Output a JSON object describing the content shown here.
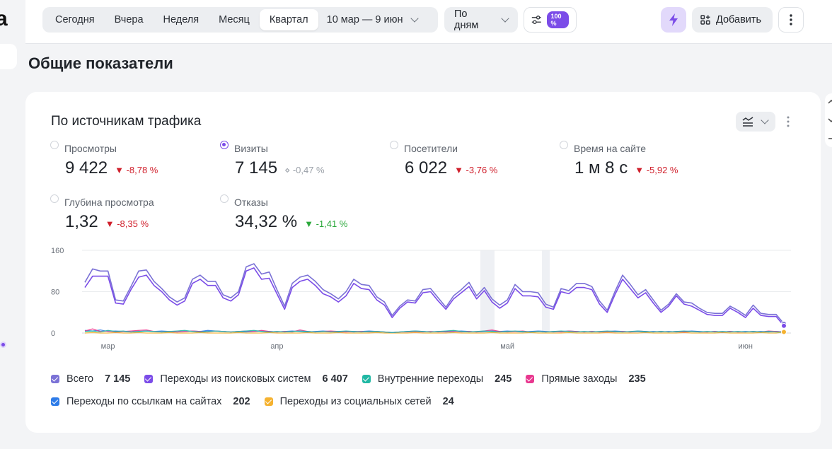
{
  "toolbar": {
    "periods": [
      "Сегодня",
      "Вчера",
      "Неделя",
      "Месяц",
      "Квартал"
    ],
    "active_period": "Квартал",
    "date_range": "10 мар — 9 июн",
    "grouping": "По дням",
    "sampling_badge": "100 %",
    "add_label": "Добавить"
  },
  "page": {
    "title": "Общие показатели"
  },
  "card": {
    "title": "По источникам трафика",
    "metrics": [
      {
        "label": "Просмотры",
        "value": "9 422",
        "delta": "-8,78 %",
        "trend": "neg",
        "selected": false
      },
      {
        "label": "Визиты",
        "value": "7 145",
        "delta": "-0,47 %",
        "trend": "neu",
        "selected": true
      },
      {
        "label": "Посетители",
        "value": "6 022",
        "delta": "-3,76 %",
        "trend": "neg",
        "selected": false
      },
      {
        "label": "Время на сайте",
        "value": "1 м 8 с",
        "delta": "-5,92 %",
        "trend": "neg",
        "selected": false
      },
      {
        "label": "Глубина просмотра",
        "value": "1,32",
        "delta": "-8,35 %",
        "trend": "neg",
        "selected": false
      },
      {
        "label": "Отказы",
        "value": "34,32 %",
        "delta": "-1,41 %",
        "trend": "pos",
        "selected": false
      }
    ],
    "legend": [
      {
        "label": "Всего",
        "value": "7 145",
        "color": "#7b72d6"
      },
      {
        "label": "Переходы из поисковых систем",
        "value": "6 407",
        "color": "#7b4ce8"
      },
      {
        "label": "Внутренние переходы",
        "value": "245",
        "color": "#21b8a4"
      },
      {
        "label": "Прямые заходы",
        "value": "235",
        "color": "#e8388f"
      },
      {
        "label": "Переходы по ссылкам на сайтах",
        "value": "202",
        "color": "#2d7be8"
      },
      {
        "label": "Переходы из социальных сетей",
        "value": "24",
        "color": "#f5b230"
      }
    ]
  },
  "chart_data": {
    "type": "line",
    "x_start": "10 мар",
    "x_ticks": [
      "мар",
      "апр",
      "май",
      "июн"
    ],
    "y_ticks": [
      "0",
      "80",
      "160"
    ],
    "ylim": [
      0,
      160
    ],
    "series": [
      {
        "name": "Всего",
        "color": "#7b72d6",
        "values": [
          98,
          124,
          120,
          120,
          64,
          62,
          90,
          120,
          122,
          100,
          86,
          70,
          60,
          68,
          104,
          112,
          100,
          100,
          74,
          68,
          80,
          128,
          134,
          114,
          118,
          84,
          52,
          96,
          108,
          112,
          100,
          84,
          76,
          66,
          80,
          104,
          94,
          92,
          70,
          60,
          34,
          52,
          64,
          62,
          84,
          86,
          68,
          50,
          72,
          84,
          98,
          72,
          88,
          66,
          54,
          64,
          94,
          80,
          80,
          78,
          56,
          50,
          86,
          82,
          96,
          96,
          90,
          62,
          44,
          80,
          112,
          94,
          74,
          84,
          64,
          44,
          56,
          76,
          60,
          58,
          48,
          40,
          38,
          38,
          52,
          44,
          34,
          54,
          38,
          36,
          36,
          18
        ]
      },
      {
        "name": "Переходы из поисковых систем",
        "color": "#7b4ce8",
        "values": [
          88,
          110,
          110,
          110,
          58,
          56,
          84,
          108,
          112,
          92,
          80,
          64,
          54,
          62,
          96,
          104,
          92,
          92,
          68,
          62,
          74,
          120,
          126,
          104,
          106,
          76,
          46,
          88,
          100,
          104,
          92,
          76,
          70,
          60,
          72,
          96,
          86,
          84,
          64,
          54,
          30,
          48,
          60,
          58,
          78,
          80,
          62,
          46,
          66,
          78,
          90,
          66,
          82,
          60,
          48,
          58,
          86,
          72,
          72,
          70,
          50,
          46,
          80,
          76,
          88,
          88,
          84,
          56,
          40,
          74,
          104,
          86,
          68,
          78,
          58,
          40,
          52,
          72,
          56,
          52,
          44,
          36,
          34,
          34,
          48,
          40,
          30,
          48,
          34,
          32,
          32,
          14
        ]
      },
      {
        "name": "Внутренние переходы",
        "color": "#21b8a4",
        "values": [
          3,
          4,
          2,
          5,
          3,
          4,
          2,
          3,
          4,
          3,
          2,
          3,
          4,
          5,
          3,
          2,
          3,
          4,
          3,
          2,
          3,
          4,
          5,
          3,
          2,
          3,
          2,
          3,
          4,
          3,
          2,
          3,
          2,
          3,
          4,
          3,
          2,
          3,
          3,
          2,
          1,
          2,
          3,
          4,
          3,
          2,
          3,
          4,
          5,
          3,
          2,
          3,
          4,
          3,
          2,
          3,
          4,
          3,
          2,
          3,
          2,
          3,
          4,
          3,
          2,
          3,
          2,
          3,
          4,
          3,
          2,
          3,
          4,
          3,
          2,
          3,
          2,
          3,
          4,
          3,
          2,
          3,
          2,
          3,
          2,
          3,
          2,
          3,
          2,
          3,
          2,
          2
        ]
      },
      {
        "name": "Прямые заходы",
        "color": "#e8388f",
        "values": [
          4,
          8,
          3,
          4,
          2,
          3,
          4,
          5,
          6,
          3,
          2,
          3,
          2,
          3,
          4,
          3,
          2,
          4,
          3,
          2,
          3,
          4,
          3,
          5,
          3,
          2,
          3,
          2,
          6,
          3,
          2,
          3,
          4,
          3,
          2,
          3,
          3,
          2,
          3,
          2,
          1,
          2,
          2,
          3,
          2,
          3,
          2,
          3,
          4,
          2,
          3,
          2,
          4,
          6,
          3,
          2,
          3,
          4,
          2,
          3,
          2,
          3,
          2,
          4,
          3,
          2,
          3,
          2,
          3,
          2,
          3,
          2,
          4,
          3,
          2,
          3,
          2,
          3,
          2,
          3,
          2,
          2,
          3,
          2,
          3,
          2,
          2,
          3,
          2,
          4,
          3,
          2
        ]
      },
      {
        "name": "Переходы по ссылкам на сайтах",
        "color": "#2d7be8",
        "values": [
          5,
          4,
          6,
          3,
          4,
          3,
          2,
          3,
          4,
          3,
          4,
          3,
          2,
          3,
          4,
          3,
          5,
          4,
          3,
          2,
          3,
          2,
          3,
          4,
          3,
          2,
          3,
          4,
          3,
          2,
          3,
          4,
          3,
          2,
          3,
          2,
          3,
          4,
          3,
          2,
          1,
          2,
          3,
          4,
          3,
          2,
          3,
          2,
          3,
          4,
          3,
          2,
          3,
          4,
          3,
          4,
          3,
          2,
          3,
          4,
          3,
          2,
          3,
          4,
          3,
          2,
          3,
          2,
          3,
          4,
          3,
          2,
          3,
          2,
          3,
          2,
          3,
          2,
          3,
          4,
          3,
          2,
          3,
          2,
          3,
          2,
          3,
          2,
          3,
          2,
          3,
          2
        ]
      },
      {
        "name": "Переходы из социальных сетей",
        "color": "#f5b230",
        "values": [
          0,
          1,
          0,
          0,
          1,
          0,
          0,
          1,
          0,
          0,
          0,
          1,
          0,
          0,
          0,
          1,
          0,
          0,
          0,
          0,
          1,
          0,
          0,
          0,
          1,
          0,
          0,
          0,
          0,
          1,
          0,
          0,
          0,
          1,
          0,
          0,
          0,
          0,
          1,
          0,
          0,
          0,
          0,
          1,
          0,
          0,
          0,
          0,
          1,
          0,
          0,
          0,
          0,
          1,
          0,
          0,
          0,
          0,
          1,
          0,
          0,
          0,
          0,
          1,
          0,
          0,
          0,
          0,
          1,
          0,
          0,
          0,
          0,
          1,
          0,
          0,
          0,
          0,
          1,
          0,
          0,
          0,
          0,
          1,
          0,
          0,
          0,
          0,
          1,
          0,
          0,
          2
        ]
      }
    ]
  }
}
